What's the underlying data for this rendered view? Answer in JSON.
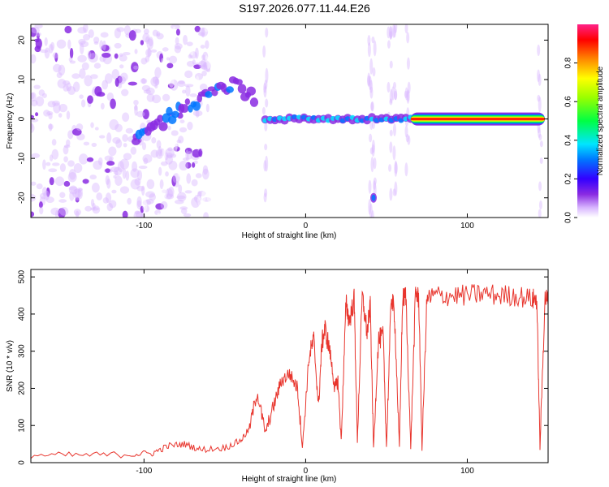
{
  "title": "S197.2026.077.11.44.E26",
  "chart_data": [
    {
      "type": "heatmap",
      "xlabel": "Height of straight line (km)",
      "ylabel": "Frequency (Hz)",
      "xlim": [
        -170,
        150
      ],
      "ylim": [
        -25,
        24
      ],
      "xticks": [
        -100,
        0,
        100
      ],
      "yticks": [
        -20,
        -10,
        0,
        10,
        20
      ],
      "colorbar": {
        "label": "Normalized spectral amplitude",
        "range": [
          0,
          1
        ],
        "ticks": [
          "0.0",
          "0.2",
          "0.4",
          "0.6",
          "0.8"
        ]
      },
      "features": {
        "noise_region_km": [
          -170,
          -100
        ],
        "rising_trace": {
          "x": [
            -105,
            -90,
            -75,
            -60,
            -45,
            -30
          ],
          "y": [
            -6,
            -1,
            3,
            6,
            9,
            5
          ]
        },
        "carrier_line": {
          "freq_hz": 0,
          "start_km": -25,
          "end_km": 148,
          "peak_amplitude": 1.0
        },
        "spur": {
          "x_km": 42,
          "freq_hz": -20
        }
      }
    },
    {
      "type": "line",
      "xlabel": "Height of straight line (km)",
      "ylabel": "SNR (10 * v/v)",
      "xlim": [
        -170,
        150
      ],
      "ylim": [
        0,
        520
      ],
      "xticks": [
        -100,
        0,
        100
      ],
      "yticks": [
        0,
        100,
        200,
        300,
        400,
        500
      ],
      "series": [
        {
          "name": "SNR",
          "color": "#e8352d",
          "x": [
            -170,
            -140,
            -110,
            -95,
            -85,
            -75,
            -65,
            -50,
            -40,
            -35,
            -30,
            -25,
            -20,
            -15,
            -10,
            -5,
            -2,
            2,
            5,
            8,
            10,
            12,
            15,
            18,
            20,
            22,
            25,
            27,
            30,
            32,
            35,
            38,
            40,
            42,
            45,
            48,
            50,
            53,
            55,
            58,
            60,
            62,
            65,
            68,
            70,
            72,
            75,
            80,
            90,
            100,
            110,
            120,
            130,
            140,
            143,
            145,
            148,
            150
          ],
          "y": [
            20,
            20,
            22,
            25,
            45,
            50,
            35,
            40,
            60,
            90,
            190,
            80,
            150,
            220,
            240,
            200,
            40,
            280,
            330,
            150,
            320,
            360,
            300,
            200,
            220,
            60,
            430,
            380,
            440,
            60,
            450,
            350,
            420,
            40,
            330,
            340,
            40,
            450,
            400,
            40,
            440,
            450,
            40,
            460,
            440,
            40,
            440,
            450,
            450,
            450,
            455,
            450,
            450,
            440,
            440,
            40,
            440,
            440
          ]
        }
      ]
    }
  ]
}
